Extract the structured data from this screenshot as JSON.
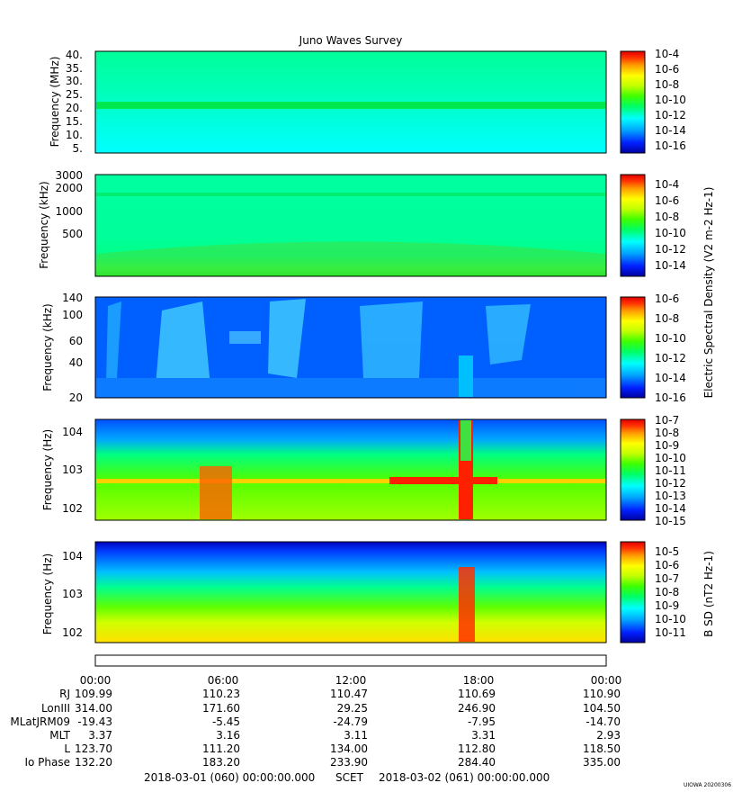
{
  "title": "Juno Waves Survey",
  "stamp": "UIOWA 20200306",
  "colormap": [
    "#0000a0",
    "#0020ff",
    "#00a0ff",
    "#00ffff",
    "#00ff60",
    "#40ff00",
    "#c0ff00",
    "#ffff00",
    "#ffa000",
    "#ff3000",
    "#e00000"
  ],
  "chart_data": [
    {
      "type": "heatmap",
      "panel": "high-frequency receiver",
      "ylabel": "Frequency (MHz)",
      "ytick_labels": [
        "40.",
        "35.",
        "30.",
        "25.",
        "20.",
        "15.",
        "10.",
        "5."
      ],
      "ylim": [
        3,
        41
      ],
      "colorbar_labels": [
        "10-4",
        "10-6",
        "10-8",
        "10-10",
        "10-12",
        "10-14",
        "10-16"
      ]
    },
    {
      "type": "heatmap",
      "panel": "high-band kHz",
      "ylabel": "Frequency (kHz)",
      "ytick_labels": [
        "3000",
        "2000",
        "1000",
        "500"
      ],
      "yscale": "log",
      "ylim": [
        100,
        3000
      ],
      "colorbar_labels": [
        "10-4",
        "10-6",
        "10-8",
        "10-10",
        "10-12",
        "10-14"
      ]
    },
    {
      "type": "heatmap",
      "panel": "low-band kHz",
      "ylabel": "Frequency (kHz)",
      "ytick_labels": [
        "140",
        "100",
        "60",
        "40",
        "20"
      ],
      "ylim": [
        20,
        140
      ],
      "colorbar_labels": [
        "10-6",
        "10-8",
        "10-10",
        "10-12",
        "10-14",
        "10-16"
      ]
    },
    {
      "type": "heatmap",
      "panel": "electric Hz",
      "ylabel": "Frequency (Hz)",
      "ytick_labels": [
        "104",
        "103",
        "102"
      ],
      "yscale": "log",
      "ylim": [
        50,
        20000
      ],
      "colorbar_labels": [
        "10-7",
        "10-8",
        "10-9",
        "10-10",
        "10-11",
        "10-12",
        "10-13",
        "10-14",
        "10-15"
      ]
    },
    {
      "type": "heatmap",
      "panel": "magnetic Hz",
      "ylabel": "Frequency (Hz)",
      "ytick_labels": [
        "104",
        "103",
        "102"
      ],
      "yscale": "log",
      "ylim": [
        50,
        20000
      ],
      "colorbar_labels": [
        "10-5",
        "10-6",
        "10-7",
        "10-8",
        "10-9",
        "10-10",
        "10-11"
      ]
    }
  ],
  "colorbar_axis_e": "Electric Spectral Density (V2 m-2 Hz-1)",
  "colorbar_axis_b": "B SD (nT2 Hz-1)",
  "time_axis": {
    "labels": [
      "00:00",
      "06:00",
      "12:00",
      "18:00",
      "00:00"
    ],
    "rows": [
      {
        "label": "RJ",
        "values": [
          "109.99",
          "110.23",
          "110.47",
          "110.69",
          "110.90"
        ]
      },
      {
        "label": "LonIII",
        "values": [
          "314.00",
          "171.60",
          "29.25",
          "246.90",
          "104.50"
        ]
      },
      {
        "label": "MLatJRM09",
        "values": [
          "-19.43",
          "-5.45",
          "-24.79",
          "-7.95",
          "-14.70"
        ]
      },
      {
        "label": "MLT",
        "values": [
          "3.37",
          "3.16",
          "3.11",
          "3.31",
          "2.93"
        ]
      },
      {
        "label": "L",
        "values": [
          "123.70",
          "111.20",
          "134.00",
          "112.80",
          "118.50"
        ]
      },
      {
        "label": "Io Phase",
        "values": [
          "132.20",
          "183.20",
          "233.90",
          "284.40",
          "335.00"
        ]
      }
    ]
  },
  "footer": {
    "start": "2018-03-01 (060) 00:00:00.000",
    "mid": "SCET",
    "end": "2018-03-02 (061) 00:00:00.000"
  }
}
